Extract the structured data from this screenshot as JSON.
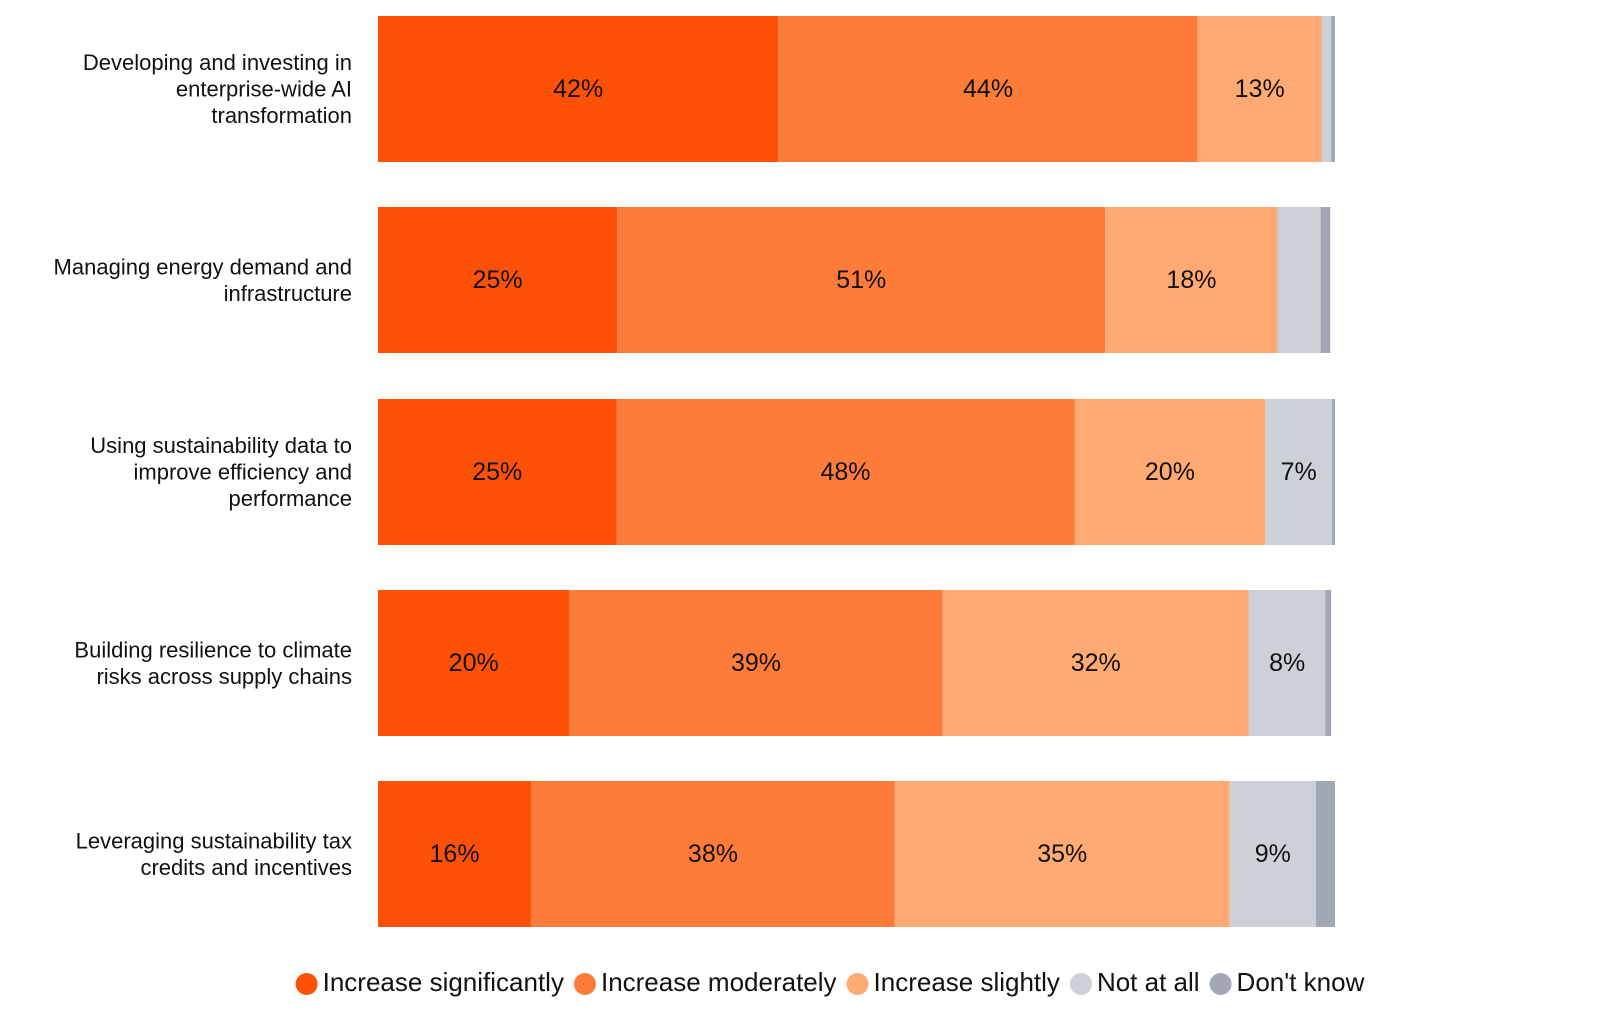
{
  "chart_data": {
    "type": "bar",
    "orientation": "horizontal",
    "stacked": true,
    "title": "",
    "xlabel": "",
    "ylabel": "",
    "xlim": [
      0,
      100
    ],
    "grid": false,
    "legend_position": "bottom",
    "categories": [
      "Developing and investing in enterprise-wide AI transformation",
      "Managing energy demand and infrastructure",
      "Using sustainability data to improve efficiency and performance",
      "Building resilience to climate risks across supply chains",
      "Leveraging sustainability tax credits and incentives"
    ],
    "category_lines": [
      [
        "Developing and investing in",
        "enterprise-wide AI",
        "transformation"
      ],
      [
        "Managing energy demand and",
        "infrastructure"
      ],
      [
        "Using sustainability data to",
        "improve efficiency and",
        "performance"
      ],
      [
        "Building resilience to climate",
        "risks across supply chains"
      ],
      [
        "Leveraging sustainability tax",
        "credits and incentives"
      ]
    ],
    "series": [
      {
        "name": "Increase significantly",
        "color": "#fd5108",
        "values": [
          42,
          25,
          25,
          20,
          16
        ],
        "labels": [
          "42%",
          "25%",
          "25%",
          "20%",
          "16%"
        ]
      },
      {
        "name": "Increase moderately",
        "color": "#fe7c39",
        "values": [
          44,
          51,
          48,
          39,
          38
        ],
        "labels": [
          "44%",
          "51%",
          "48%",
          "39%",
          "38%"
        ]
      },
      {
        "name": "Increase slightly",
        "color": "#ffaa72",
        "values": [
          13,
          18,
          20,
          32,
          35
        ],
        "labels": [
          "13%",
          "18%",
          "20%",
          "32%",
          "35%"
        ]
      },
      {
        "name": "Not at all",
        "color": "#cbd1d6",
        "values": [
          1,
          4.5,
          7,
          8,
          9
        ],
        "labels": [
          "",
          "",
          "7%",
          "8%",
          "9%"
        ]
      },
      {
        "name": "Don't know",
        "color": "#a1a8b3",
        "values": [
          0.4,
          1,
          0.3,
          0.6,
          2
        ],
        "labels": [
          "",
          "",
          "",
          "",
          ""
        ]
      }
    ]
  }
}
